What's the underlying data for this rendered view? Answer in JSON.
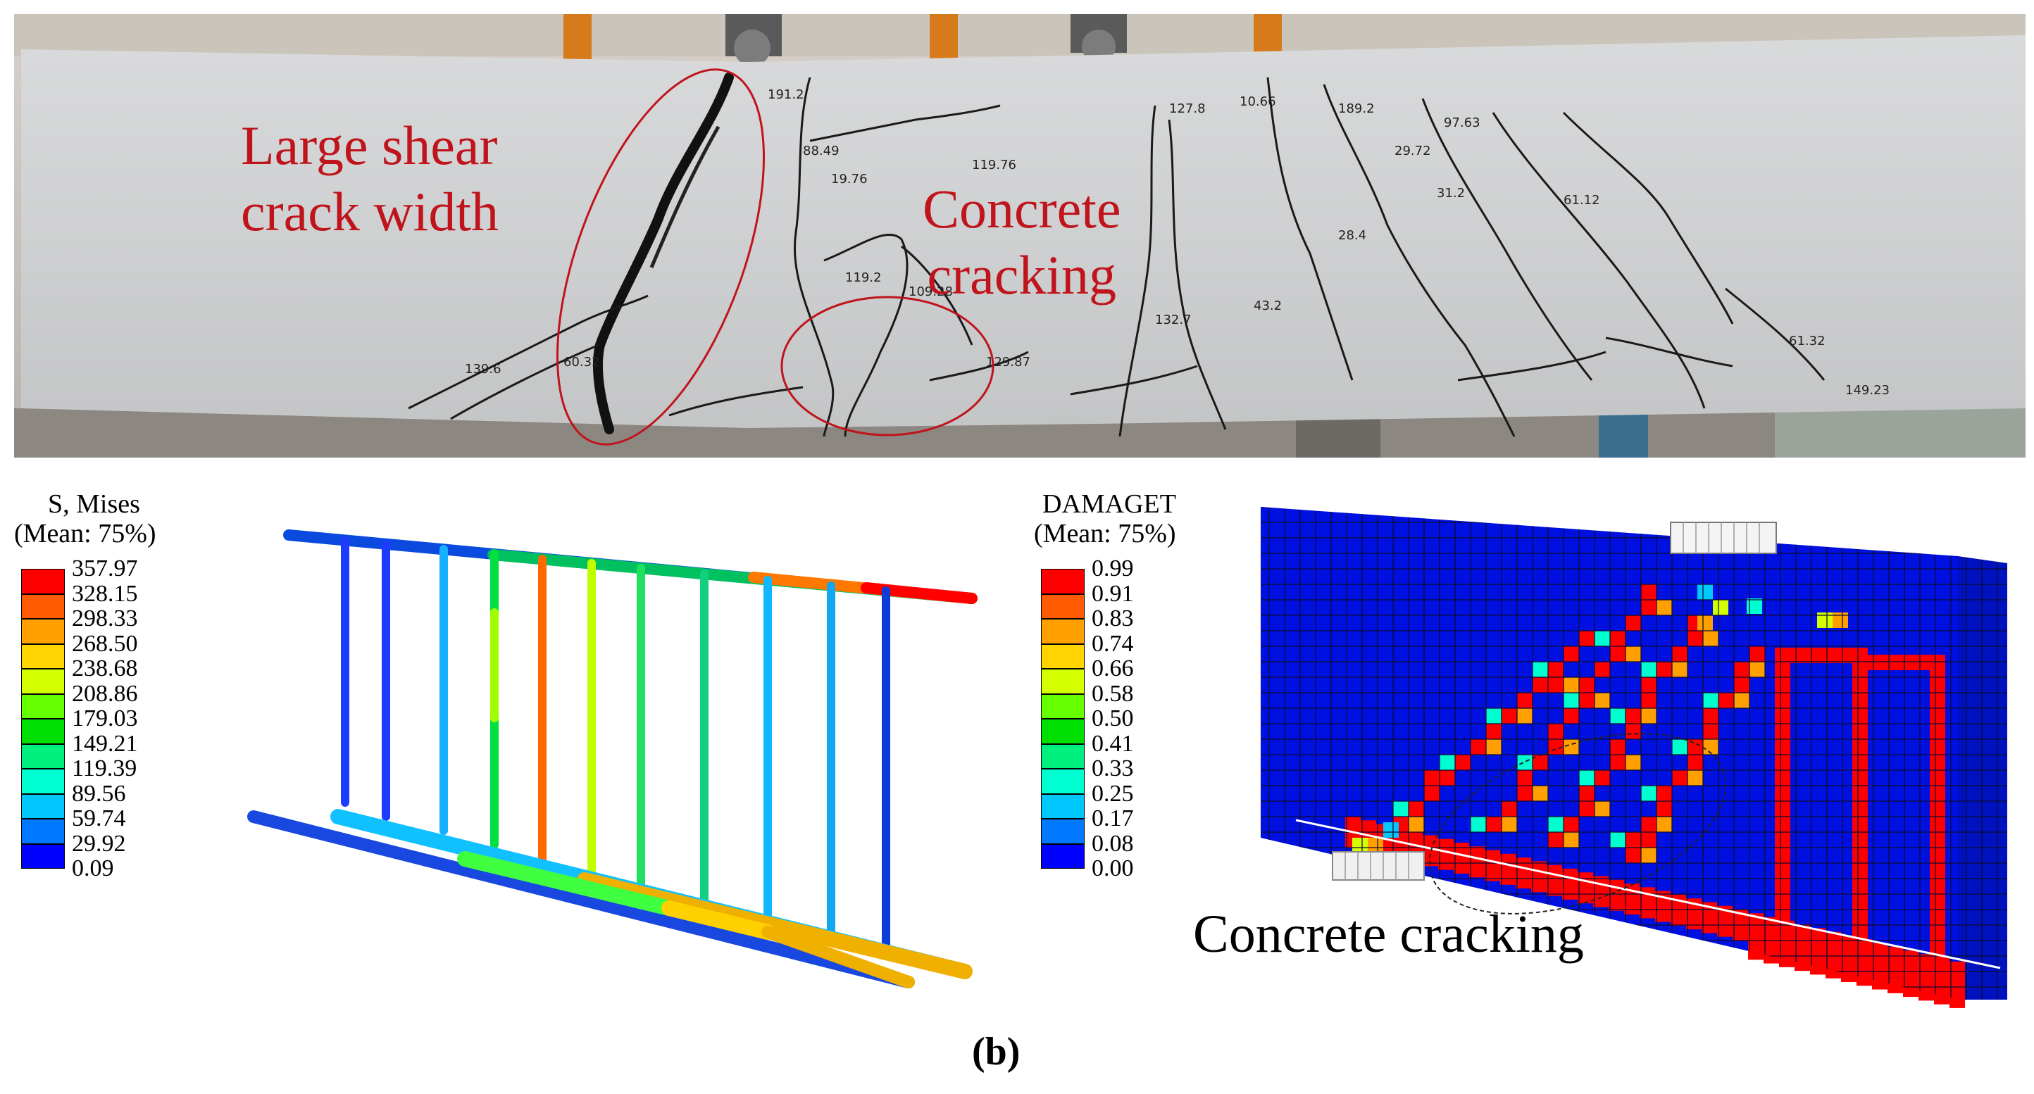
{
  "photo": {
    "label_shear_line1": "Large shear",
    "label_shear_line2": "crack width",
    "label_cracking_line1": "Concrete",
    "label_cracking_line2": "cracking"
  },
  "stress_legend": {
    "title_line1": "S, Mises",
    "title_line2": "(Mean: 75%)",
    "values": [
      "357.97",
      "328.15",
      "298.33",
      "268.50",
      "238.68",
      "208.86",
      "179.03",
      "149.21",
      "119.39",
      "89.56",
      "59.74",
      "29.92",
      "0.09"
    ],
    "colors": [
      "#ff0000",
      "#ff5a00",
      "#ffa000",
      "#ffd400",
      "#d4ff00",
      "#66ff00",
      "#00e000",
      "#00f080",
      "#00ffd0",
      "#00c8ff",
      "#0078ff",
      "#0000ff"
    ]
  },
  "damage_legend": {
    "title_line1": "DAMAGET",
    "title_line2": "(Mean: 75%)",
    "values": [
      "0.99",
      "0.91",
      "0.83",
      "0.74",
      "0.66",
      "0.58",
      "0.50",
      "0.41",
      "0.33",
      "0.25",
      "0.17",
      "0.08",
      "0.00"
    ],
    "colors": [
      "#ff0000",
      "#ff5a00",
      "#ffa000",
      "#ffd400",
      "#d4ff00",
      "#66ff00",
      "#00e000",
      "#00f080",
      "#00ffd0",
      "#00c8ff",
      "#0078ff",
      "#0000ff"
    ]
  },
  "damage_model": {
    "label": "Concrete cracking"
  },
  "caption": "(b)"
}
